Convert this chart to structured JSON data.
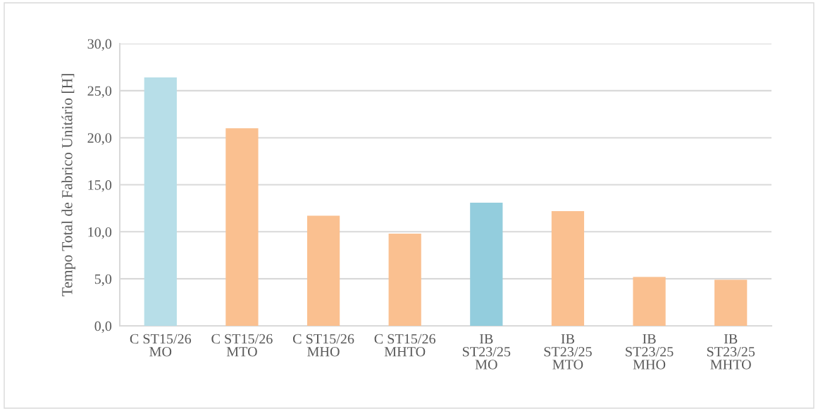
{
  "chart_data": {
    "type": "bar",
    "ylabel": "Tempo Total de Fabrico Unitário [H]",
    "categories": [
      "C ST15/26 MO",
      "C ST15/26 MTO",
      "C ST15/26 MHO",
      "C ST15/26 MHTO",
      "IB ST23/25 MO",
      "IB ST23/25 MTO",
      "IB ST23/25 MHO",
      "IB ST23/25 MHTO"
    ],
    "values": [
      26.4,
      21.0,
      11.7,
      9.8,
      13.1,
      12.2,
      5.2,
      4.9
    ],
    "colors": [
      "#b7dee8",
      "#fac090",
      "#fac090",
      "#fac090",
      "#93cddd",
      "#fac090",
      "#fac090",
      "#fac090"
    ],
    "ylim": [
      0,
      30
    ],
    "yticks": [
      {
        "value": 0,
        "label": "0,0"
      },
      {
        "value": 5,
        "label": "5,0"
      },
      {
        "value": 10,
        "label": "10,0"
      },
      {
        "value": 15,
        "label": "15,0"
      },
      {
        "value": 20,
        "label": "20,0"
      },
      {
        "value": 25,
        "label": "25,0"
      },
      {
        "value": 30,
        "label": "30,0"
      }
    ],
    "grid": "y"
  }
}
